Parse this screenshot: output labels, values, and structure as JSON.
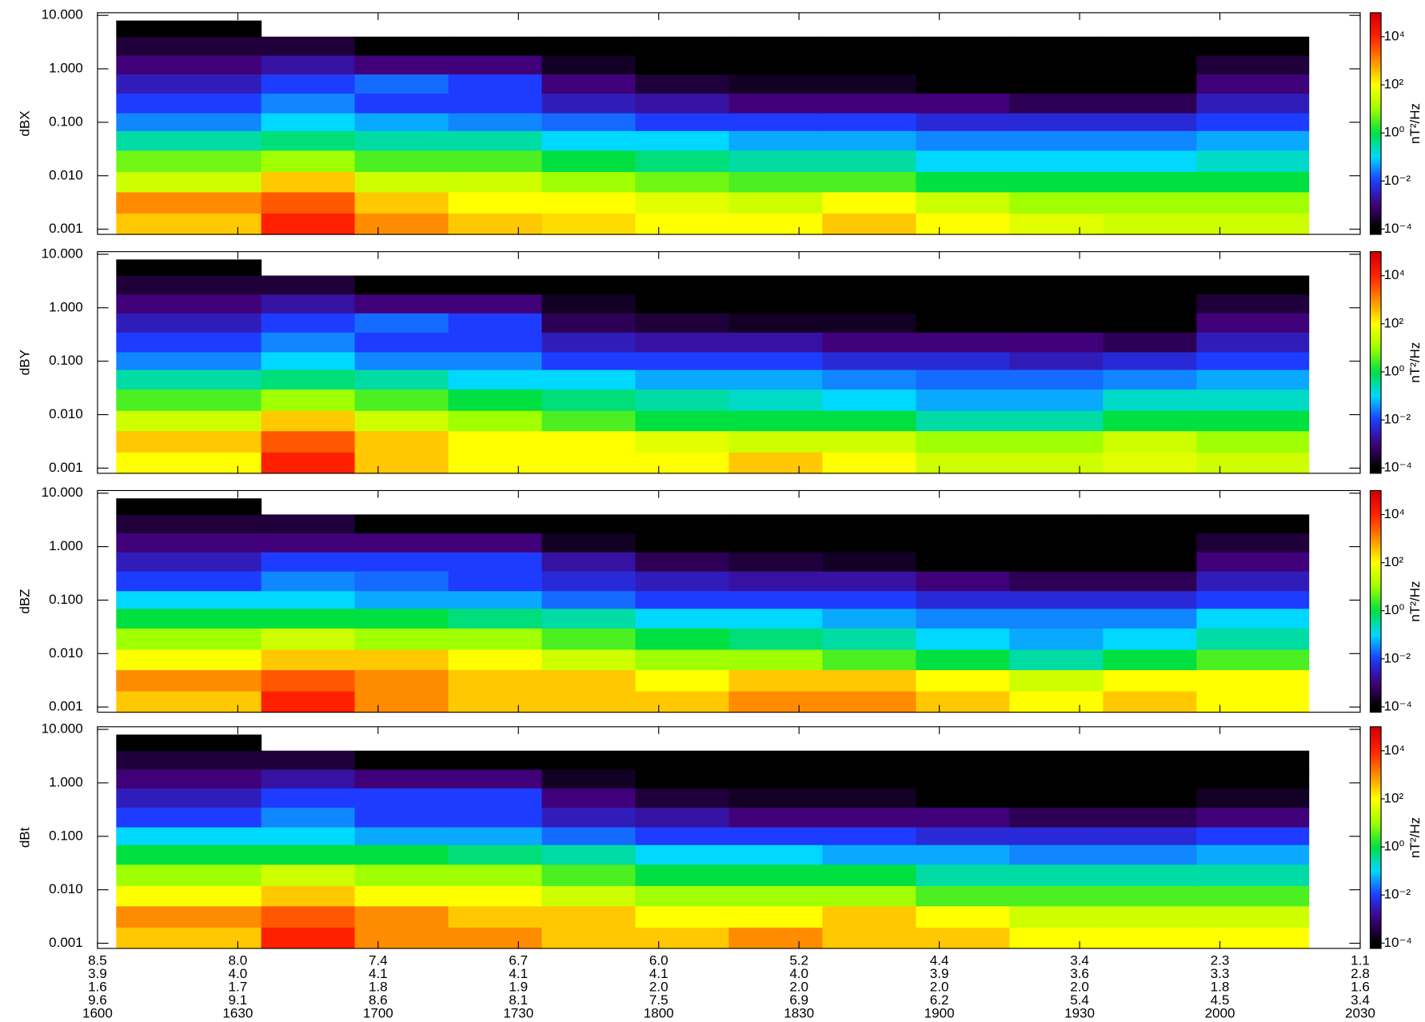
{
  "chart_data": [
    {
      "type": "heatmap",
      "ylabel": "dBX",
      "colorbar_label": "nT²/Hz",
      "log_y": true,
      "ylim": [
        0.0008,
        11.2
      ],
      "yticks": [
        {
          "value": 10,
          "label": "10.000"
        },
        {
          "value": 1,
          "label": "1.000"
        },
        {
          "value": 0.1,
          "label": "0.100"
        },
        {
          "value": 0.01,
          "label": "0.010"
        },
        {
          "value": 0.001,
          "label": "0.001"
        }
      ],
      "xlim": [
        960,
        1230
      ],
      "xticks": [
        {
          "value": 960,
          "label": "1600"
        },
        {
          "value": 990,
          "label": "1630"
        },
        {
          "value": 1020,
          "label": "1700"
        },
        {
          "value": 1050,
          "label": "1730"
        },
        {
          "value": 1080,
          "label": "1800"
        },
        {
          "value": 1110,
          "label": "1830"
        },
        {
          "value": 1140,
          "label": "1900"
        },
        {
          "value": 1170,
          "label": "1930"
        },
        {
          "value": 1200,
          "label": "2000"
        },
        {
          "value": 1230,
          "label": "2030"
        }
      ],
      "clim": [
        6e-05,
        100000
      ],
      "cticks": [
        {
          "value": 0.0001,
          "label": "10⁻⁴"
        },
        {
          "value": 0.01,
          "label": "10⁻²"
        },
        {
          "value": 1,
          "label": "10⁰"
        },
        {
          "value": 100,
          "label": "10²"
        },
        {
          "value": 10000,
          "label": "10⁴"
        }
      ],
      "x_edges": [
        964,
        995,
        1015,
        1035,
        1055,
        1075,
        1095,
        1115,
        1135,
        1155,
        1175,
        1195,
        1219
      ],
      "y_edges": [
        0.0008,
        0.002,
        0.005,
        0.012,
        0.03,
        0.07,
        0.15,
        0.35,
        0.8,
        1.8,
        4,
        8
      ],
      "z": [
        [
          300,
          10000,
          1000,
          300,
          200,
          100,
          100,
          300,
          100,
          50,
          30,
          30
        ],
        [
          1000,
          3000,
          300,
          100,
          100,
          50,
          30,
          100,
          30,
          10,
          10,
          10
        ],
        [
          30,
          300,
          30,
          30,
          10,
          5,
          3,
          3,
          1,
          1,
          1,
          1
        ],
        [
          5,
          10,
          3,
          3,
          1,
          0.5,
          0.3,
          0.3,
          0.1,
          0.1,
          0.1,
          0.2
        ],
        [
          0.3,
          0.5,
          0.3,
          0.3,
          0.1,
          0.1,
          0.05,
          0.05,
          0.03,
          0.03,
          0.03,
          0.05
        ],
        [
          0.03,
          0.1,
          0.05,
          0.03,
          0.02,
          0.01,
          0.01,
          0.01,
          0.005,
          0.005,
          0.005,
          0.01
        ],
        [
          0.01,
          0.03,
          0.01,
          0.01,
          0.003,
          0.002,
          0.001,
          0.001,
          0.001,
          0.0005,
          0.0005,
          0.003
        ],
        [
          0.003,
          0.01,
          0.02,
          0.01,
          0.001,
          0.0003,
          0.0002,
          0.0002,
          0.0001,
          0.0001,
          0.0001,
          0.001
        ],
        [
          0.001,
          0.002,
          0.001,
          0.001,
          0.0002,
          0.0001,
          0.0001,
          0.0001,
          0.0001,
          0.0001,
          0.0001,
          0.0003
        ],
        [
          0.0003,
          0.0003,
          0.0001,
          0.0001,
          0.0001,
          0.0001,
          0.0001,
          0.0001,
          0.0001,
          0.0001,
          0.0001,
          0.0001
        ],
        [
          0.0001,
          null,
          null,
          null,
          null,
          null,
          null,
          null,
          null,
          null,
          null,
          null
        ]
      ]
    },
    {
      "type": "heatmap",
      "ylabel": "dBY",
      "colorbar_label": "nT²/Hz",
      "log_y": true,
      "ylim": [
        0.0008,
        11.2
      ],
      "yticks": [
        {
          "value": 10,
          "label": "10.000"
        },
        {
          "value": 1,
          "label": "1.000"
        },
        {
          "value": 0.1,
          "label": "0.100"
        },
        {
          "value": 0.01,
          "label": "0.010"
        },
        {
          "value": 0.001,
          "label": "0.001"
        }
      ],
      "xlim": [
        960,
        1230
      ],
      "xticks": [
        {
          "value": 960,
          "label": "1600"
        },
        {
          "value": 990,
          "label": "1630"
        },
        {
          "value": 1020,
          "label": "1700"
        },
        {
          "value": 1050,
          "label": "1730"
        },
        {
          "value": 1080,
          "label": "1800"
        },
        {
          "value": 1110,
          "label": "1830"
        },
        {
          "value": 1140,
          "label": "1900"
        },
        {
          "value": 1170,
          "label": "1930"
        },
        {
          "value": 1200,
          "label": "2000"
        },
        {
          "value": 1230,
          "label": "2030"
        }
      ],
      "clim": [
        6e-05,
        100000
      ],
      "cticks": [
        {
          "value": 0.0001,
          "label": "10⁻⁴"
        },
        {
          "value": 0.01,
          "label": "10⁻²"
        },
        {
          "value": 1,
          "label": "10⁰"
        },
        {
          "value": 100,
          "label": "10²"
        },
        {
          "value": 10000,
          "label": "10⁴"
        }
      ],
      "x_edges": [
        964,
        995,
        1015,
        1035,
        1055,
        1075,
        1095,
        1115,
        1135,
        1155,
        1175,
        1195,
        1219
      ],
      "y_edges": [
        0.0008,
        0.002,
        0.005,
        0.012,
        0.03,
        0.07,
        0.15,
        0.35,
        0.8,
        1.8,
        4,
        8
      ],
      "z": [
        [
          100,
          10000,
          300,
          100,
          100,
          100,
          300,
          100,
          30,
          30,
          50,
          30
        ],
        [
          300,
          3000,
          300,
          100,
          100,
          50,
          30,
          30,
          10,
          10,
          30,
          10
        ],
        [
          30,
          300,
          30,
          10,
          3,
          1,
          1,
          1,
          0.3,
          0.3,
          1,
          1
        ],
        [
          3,
          10,
          3,
          1,
          0.5,
          0.3,
          0.2,
          0.1,
          0.05,
          0.05,
          0.2,
          0.2
        ],
        [
          0.3,
          0.5,
          0.3,
          0.1,
          0.1,
          0.05,
          0.05,
          0.03,
          0.02,
          0.02,
          0.03,
          0.05
        ],
        [
          0.03,
          0.1,
          0.03,
          0.03,
          0.01,
          0.01,
          0.01,
          0.005,
          0.005,
          0.003,
          0.005,
          0.01
        ],
        [
          0.01,
          0.03,
          0.01,
          0.01,
          0.003,
          0.002,
          0.002,
          0.001,
          0.001,
          0.001,
          0.0005,
          0.003
        ],
        [
          0.003,
          0.01,
          0.02,
          0.01,
          0.0005,
          0.0003,
          0.0002,
          0.0002,
          0.0001,
          0.0001,
          0.0001,
          0.001
        ],
        [
          0.001,
          0.002,
          0.001,
          0.001,
          0.0002,
          0.0001,
          0.0001,
          0.0001,
          0.0001,
          0.0001,
          0.0001,
          0.0003
        ],
        [
          0.0003,
          0.0003,
          0.0001,
          0.0001,
          0.0001,
          0.0001,
          0.0001,
          0.0001,
          0.0001,
          0.0001,
          0.0001,
          0.0001
        ],
        [
          0.0001,
          null,
          null,
          null,
          null,
          null,
          null,
          null,
          null,
          null,
          null,
          null
        ]
      ]
    },
    {
      "type": "heatmap",
      "ylabel": "dBZ",
      "colorbar_label": "nT²/Hz",
      "log_y": true,
      "ylim": [
        0.0008,
        11.2
      ],
      "yticks": [
        {
          "value": 10,
          "label": "10.000"
        },
        {
          "value": 1,
          "label": "1.000"
        },
        {
          "value": 0.1,
          "label": "0.100"
        },
        {
          "value": 0.01,
          "label": "0.010"
        },
        {
          "value": 0.001,
          "label": "0.001"
        }
      ],
      "xlim": [
        960,
        1230
      ],
      "xticks": [
        {
          "value": 960,
          "label": "1600"
        },
        {
          "value": 990,
          "label": "1630"
        },
        {
          "value": 1020,
          "label": "1700"
        },
        {
          "value": 1050,
          "label": "1730"
        },
        {
          "value": 1080,
          "label": "1800"
        },
        {
          "value": 1110,
          "label": "1830"
        },
        {
          "value": 1140,
          "label": "1900"
        },
        {
          "value": 1170,
          "label": "1930"
        },
        {
          "value": 1200,
          "label": "2000"
        },
        {
          "value": 1230,
          "label": "2030"
        }
      ],
      "clim": [
        6e-05,
        100000
      ],
      "cticks": [
        {
          "value": 0.0001,
          "label": "10⁻⁴"
        },
        {
          "value": 0.01,
          "label": "10⁻²"
        },
        {
          "value": 1,
          "label": "10⁰"
        },
        {
          "value": 100,
          "label": "10²"
        },
        {
          "value": 10000,
          "label": "10⁴"
        }
      ],
      "x_edges": [
        964,
        995,
        1015,
        1035,
        1055,
        1075,
        1095,
        1115,
        1135,
        1155,
        1175,
        1195,
        1219
      ],
      "y_edges": [
        0.0008,
        0.002,
        0.005,
        0.012,
        0.03,
        0.07,
        0.15,
        0.35,
        0.8,
        1.8,
        4,
        8
      ],
      "z": [
        [
          300,
          10000,
          1000,
          300,
          300,
          300,
          1000,
          1000,
          300,
          100,
          300,
          100
        ],
        [
          1000,
          3000,
          1000,
          300,
          300,
          100,
          300,
          300,
          100,
          30,
          100,
          100
        ],
        [
          100,
          300,
          300,
          100,
          30,
          10,
          10,
          3,
          1,
          0.3,
          1,
          3
        ],
        [
          10,
          30,
          10,
          10,
          3,
          1,
          0.5,
          0.3,
          0.1,
          0.05,
          0.1,
          0.3
        ],
        [
          1,
          1,
          1,
          0.5,
          0.3,
          0.1,
          0.1,
          0.05,
          0.03,
          0.03,
          0.03,
          0.1
        ],
        [
          0.1,
          0.1,
          0.05,
          0.05,
          0.02,
          0.01,
          0.01,
          0.01,
          0.005,
          0.005,
          0.005,
          0.01
        ],
        [
          0.01,
          0.03,
          0.02,
          0.01,
          0.005,
          0.003,
          0.002,
          0.002,
          0.001,
          0.0005,
          0.0005,
          0.003
        ],
        [
          0.003,
          0.01,
          0.01,
          0.01,
          0.002,
          0.0005,
          0.0003,
          0.0002,
          0.0001,
          0.0001,
          0.0001,
          0.001
        ],
        [
          0.001,
          0.001,
          0.001,
          0.001,
          0.0002,
          0.0001,
          0.0001,
          0.0001,
          0.0001,
          0.0001,
          0.0001,
          0.0003
        ],
        [
          0.0003,
          0.0003,
          0.0001,
          0.0001,
          0.0001,
          0.0001,
          0.0001,
          0.0001,
          0.0001,
          0.0001,
          0.0001,
          0.0001
        ],
        [
          0.0001,
          null,
          null,
          null,
          null,
          null,
          null,
          null,
          null,
          null,
          null,
          null
        ]
      ]
    },
    {
      "type": "heatmap",
      "ylabel": "dBt",
      "colorbar_label": "nT²/Hz",
      "log_y": true,
      "ylim": [
        0.0008,
        11.2
      ],
      "yticks": [
        {
          "value": 10,
          "label": "10.000"
        },
        {
          "value": 1,
          "label": "1.000"
        },
        {
          "value": 0.1,
          "label": "0.100"
        },
        {
          "value": 0.01,
          "label": "0.010"
        },
        {
          "value": 0.001,
          "label": "0.001"
        }
      ],
      "xlim": [
        960,
        1230
      ],
      "xticks": [
        {
          "value": 960,
          "label": "1600"
        },
        {
          "value": 990,
          "label": "1630"
        },
        {
          "value": 1020,
          "label": "1700"
        },
        {
          "value": 1050,
          "label": "1730"
        },
        {
          "value": 1080,
          "label": "1800"
        },
        {
          "value": 1110,
          "label": "1830"
        },
        {
          "value": 1140,
          "label": "1900"
        },
        {
          "value": 1170,
          "label": "1930"
        },
        {
          "value": 1200,
          "label": "2000"
        },
        {
          "value": 1230,
          "label": "2030"
        }
      ],
      "x_rows": [
        [
          "8.5",
          "8.0",
          "7.4",
          "6.7",
          "6.0",
          "5.2",
          "4.4",
          "3.4",
          "2.3",
          "1.1"
        ],
        [
          "3.9",
          "4.0",
          "4.1",
          "4.1",
          "4.1",
          "4.0",
          "3.9",
          "3.6",
          "3.3",
          "2.8"
        ],
        [
          "1.6",
          "1.7",
          "1.8",
          "1.9",
          "2.0",
          "2.0",
          "2.0",
          "2.0",
          "1.8",
          "1.6"
        ],
        [
          "9.6",
          "9.1",
          "8.6",
          "8.1",
          "7.5",
          "6.9",
          "6.2",
          "5.4",
          "4.5",
          "3.4"
        ]
      ],
      "clim": [
        6e-05,
        100000
      ],
      "cticks": [
        {
          "value": 0.0001,
          "label": "10⁻⁴"
        },
        {
          "value": 0.01,
          "label": "10⁻²"
        },
        {
          "value": 1,
          "label": "10⁰"
        },
        {
          "value": 100,
          "label": "10²"
        },
        {
          "value": 10000,
          "label": "10⁴"
        }
      ],
      "x_edges": [
        964,
        995,
        1015,
        1035,
        1055,
        1075,
        1095,
        1115,
        1135,
        1155,
        1175,
        1195,
        1219
      ],
      "y_edges": [
        0.0008,
        0.002,
        0.005,
        0.012,
        0.03,
        0.07,
        0.15,
        0.35,
        0.8,
        1.8,
        4,
        8
      ],
      "z": [
        [
          300,
          10000,
          1000,
          1000,
          300,
          300,
          1000,
          300,
          300,
          100,
          100,
          100
        ],
        [
          1000,
          3000,
          1000,
          300,
          300,
          100,
          100,
          300,
          100,
          30,
          30,
          30
        ],
        [
          100,
          300,
          100,
          100,
          30,
          10,
          10,
          10,
          3,
          3,
          3,
          3
        ],
        [
          10,
          30,
          10,
          10,
          3,
          1,
          1,
          1,
          0.3,
          0.3,
          0.3,
          0.3
        ],
        [
          1,
          1,
          1,
          0.5,
          0.3,
          0.1,
          0.1,
          0.05,
          0.05,
          0.03,
          0.03,
          0.05
        ],
        [
          0.1,
          0.1,
          0.05,
          0.05,
          0.02,
          0.01,
          0.01,
          0.01,
          0.005,
          0.005,
          0.005,
          0.01
        ],
        [
          0.01,
          0.03,
          0.01,
          0.01,
          0.003,
          0.002,
          0.001,
          0.001,
          0.001,
          0.0005,
          0.0005,
          0.001
        ],
        [
          0.003,
          0.01,
          0.01,
          0.01,
          0.001,
          0.0003,
          0.0002,
          0.0002,
          0.0001,
          0.0001,
          0.0001,
          0.0002
        ],
        [
          0.001,
          0.002,
          0.001,
          0.001,
          0.0002,
          0.0001,
          0.0001,
          0.0001,
          0.0001,
          0.0001,
          0.0001,
          0.0001
        ],
        [
          0.0003,
          0.0003,
          0.0001,
          0.0001,
          0.0001,
          0.0001,
          0.0001,
          0.0001,
          0.0001,
          0.0001,
          0.0001,
          0.0001
        ],
        [
          0.0001,
          null,
          null,
          null,
          null,
          null,
          null,
          null,
          null,
          null,
          null,
          null
        ]
      ]
    }
  ]
}
